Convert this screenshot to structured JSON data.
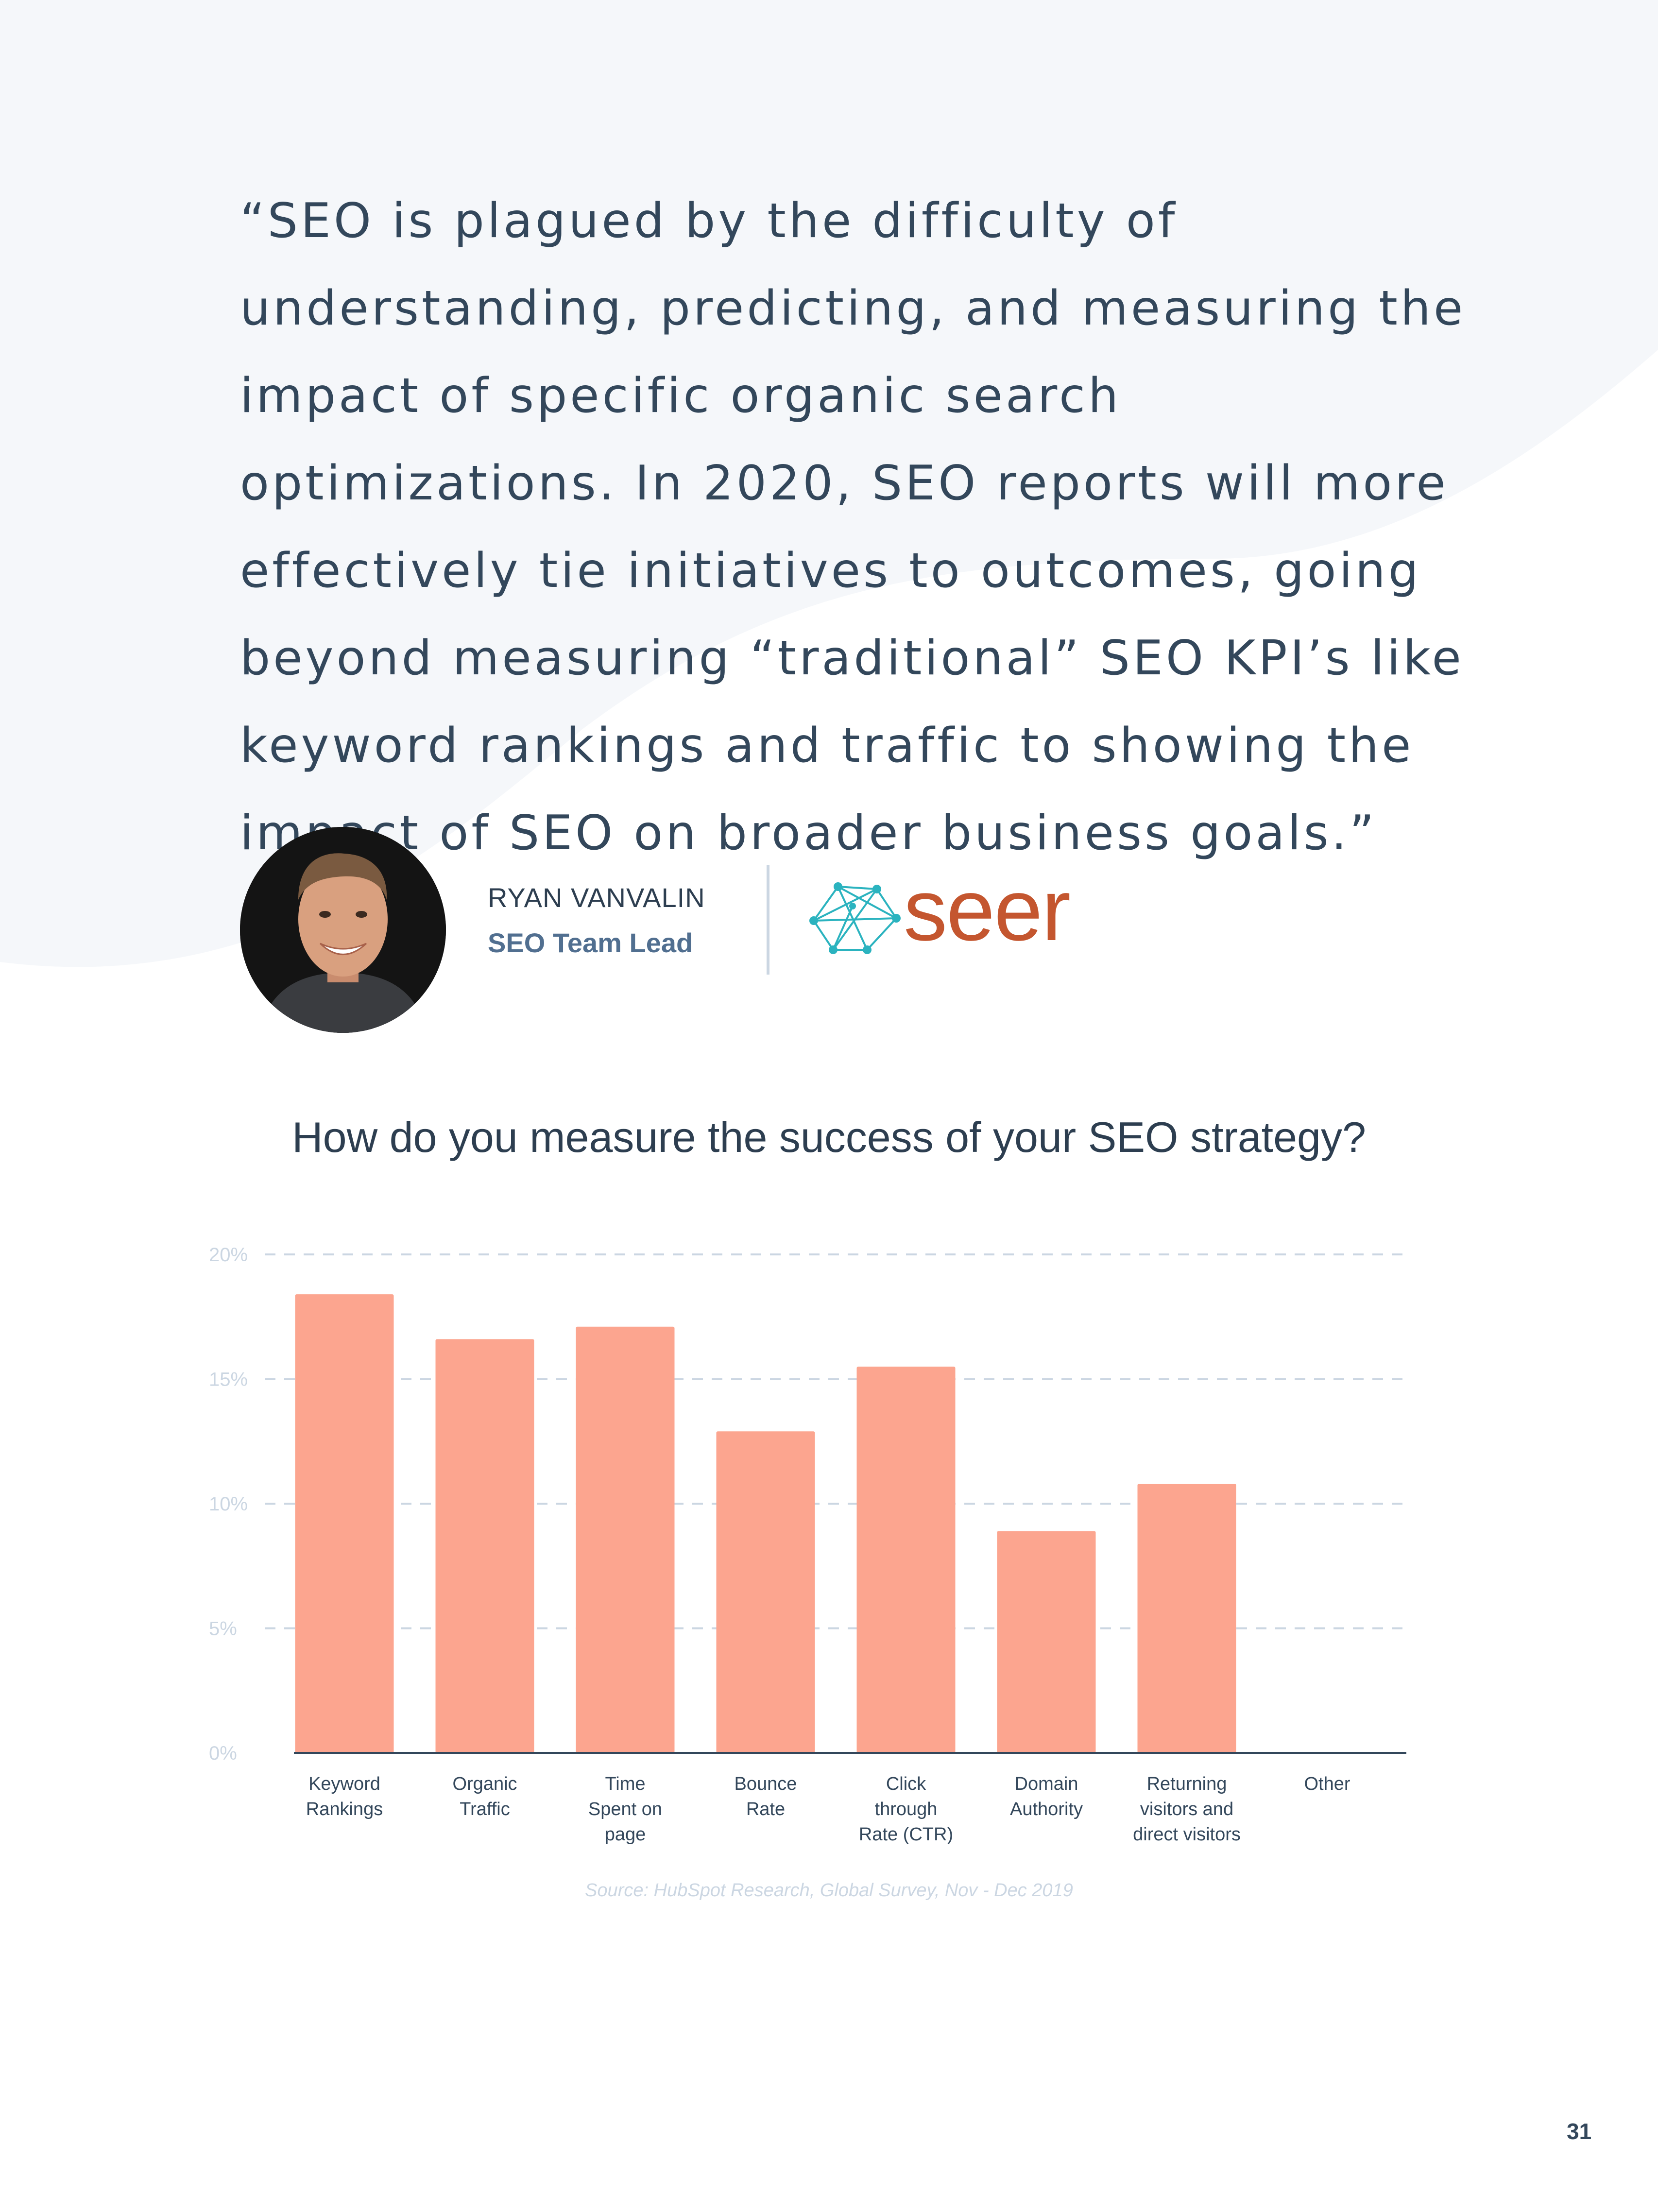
{
  "quote": {
    "text": "“SEO is plagued by the difficulty of understanding, predicting, and measuring the impact of specific organic search optimizations. In 2020, SEO reports will more effectively tie initiatives to outcomes, going beyond measuring “traditional” SEO KPI’s like keyword rankings and traffic to showing the impact of SEO on broader business goals.”"
  },
  "author": {
    "name": "RYAN VANVALIN",
    "title": "SEO Team Lead"
  },
  "company": {
    "logo_text": "seer",
    "logo_color": "#c4562f",
    "mark_color": "#2bb3bf"
  },
  "chart_data": {
    "type": "bar",
    "title": "How do you measure the success of your SEO strategy?",
    "categories": [
      "Keyword\nRankings",
      "Organic\nTraffic",
      "Time\nSpent on\npage",
      "Bounce\nRate",
      "Click\nthrough\nRate (CTR)",
      "Domain\nAuthority",
      "Returning\nvisitors and\ndirect visitors",
      "Other"
    ],
    "values": [
      18.4,
      16.6,
      17.1,
      12.9,
      15.5,
      8.9,
      10.8,
      0
    ],
    "ylim": [
      0,
      20
    ],
    "yticks": [
      "0%",
      "5%",
      "10%",
      "15%",
      "20%"
    ],
    "ytick_values": [
      0,
      5,
      10,
      15,
      20
    ],
    "grid": true,
    "bar_color": "#fca58f",
    "source": "Source: HubSpot Research, Global Survey, Nov - Dec 2019"
  },
  "page": {
    "number": "31",
    "background_shape_color": "#f5f7fa"
  }
}
